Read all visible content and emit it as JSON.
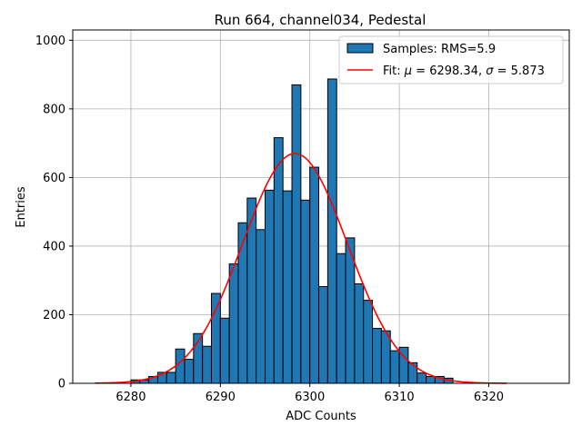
{
  "chart_data": {
    "type": "histogram",
    "title": "Run 664, channel034, Pedestal",
    "xlabel": "ADC Counts",
    "ylabel": "Entries",
    "xlim": [
      6273.5,
      6329
    ],
    "ylim": [
      0,
      1030
    ],
    "xticks": [
      6280,
      6290,
      6300,
      6310,
      6320
    ],
    "yticks": [
      0,
      200,
      400,
      600,
      800,
      1000
    ],
    "grid": true,
    "legend_position": "top-right",
    "bar_color": "#1f77b4",
    "fit_color": "#ff0000",
    "bins": {
      "edges": [
        6276.0,
        6277.0,
        6278.0,
        6279.0,
        6280.0,
        6281.0,
        6282.0,
        6283.0,
        6284.0,
        6285.0,
        6286.0,
        6287.0,
        6288.0,
        6289.0,
        6290.0,
        6291.0,
        6292.0,
        6293.0,
        6294.0,
        6295.0,
        6296.0,
        6297.0,
        6298.0,
        6299.0,
        6300.0,
        6301.0,
        6302.0,
        6303.0,
        6304.0,
        6305.0,
        6306.0,
        6307.0,
        6308.0,
        6309.0,
        6310.0,
        6311.0,
        6312.0,
        6313.0,
        6314.0,
        6315.0,
        6316.0,
        6317.0,
        6318.0,
        6319.0,
        6320.0,
        6321.0,
        6322.0,
        6323.0,
        6324.0,
        6325.0,
        6326.0,
        6327.0
      ],
      "counts": [
        0,
        0,
        0,
        0,
        10,
        10,
        20,
        32,
        32,
        100,
        70,
        145,
        108,
        262,
        190,
        348,
        468,
        540,
        448,
        563,
        716,
        561,
        870,
        534,
        630,
        282,
        887,
        378,
        424,
        290,
        242,
        160,
        153,
        95,
        105,
        60,
        30,
        20,
        20,
        15,
        0,
        0,
        0,
        0,
        0,
        0,
        0,
        0,
        0,
        0,
        0
      ]
    },
    "fit": {
      "type": "gaussian",
      "mu": 6298.34,
      "sigma": 5.873,
      "amplitude": 670,
      "range": [
        6276,
        6322
      ]
    },
    "legend": [
      {
        "label": "Samples: RMS=5.9"
      },
      {
        "label_prefix": "Fit: ",
        "mu_symbol": "μ",
        "mu_text": " = 6298.34, ",
        "sigma_symbol": "σ",
        "sigma_text": " = 5.873"
      }
    ]
  }
}
